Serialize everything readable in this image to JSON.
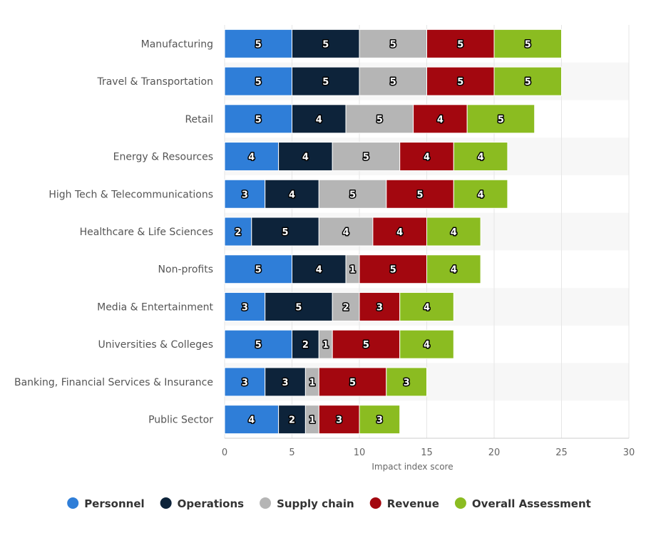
{
  "chart_data": {
    "type": "bar",
    "orientation": "horizontal",
    "stacked": true,
    "categories": [
      "Manufacturing",
      "Travel & Transportation",
      "Retail",
      "Energy & Resources",
      "High Tech & Telecommunications",
      "Healthcare & Life Sciences",
      "Non-profits",
      "Media & Entertainment",
      "Universities & Colleges",
      "Banking, Financial Services & Insurance",
      "Public Sector"
    ],
    "series": [
      {
        "name": "Personnel",
        "color": "#2f7ed8",
        "values": [
          5,
          5,
          5,
          4,
          3,
          2,
          5,
          3,
          5,
          3,
          4
        ]
      },
      {
        "name": "Operations",
        "color": "#0d233a",
        "values": [
          5,
          5,
          4,
          4,
          4,
          5,
          4,
          5,
          2,
          3,
          2
        ]
      },
      {
        "name": "Supply chain",
        "color": "#b5b5b5",
        "values": [
          5,
          5,
          5,
          5,
          5,
          4,
          1,
          2,
          1,
          1,
          1
        ]
      },
      {
        "name": "Revenue",
        "color": "#a3070f",
        "values": [
          5,
          5,
          4,
          4,
          5,
          4,
          5,
          3,
          5,
          5,
          3
        ]
      },
      {
        "name": "Overall Assessment",
        "color": "#8bbc21",
        "values": [
          5,
          5,
          5,
          4,
          4,
          4,
          4,
          4,
          4,
          3,
          3
        ]
      }
    ],
    "xlabel": "Impact index score",
    "ylabel": "",
    "xlim": [
      0,
      30
    ],
    "ticks": [
      0,
      5,
      10,
      15,
      20,
      25,
      30
    ],
    "grid": true,
    "alternating_row_bands": true,
    "legend_position": "bottom-center",
    "data_labels": true
  }
}
